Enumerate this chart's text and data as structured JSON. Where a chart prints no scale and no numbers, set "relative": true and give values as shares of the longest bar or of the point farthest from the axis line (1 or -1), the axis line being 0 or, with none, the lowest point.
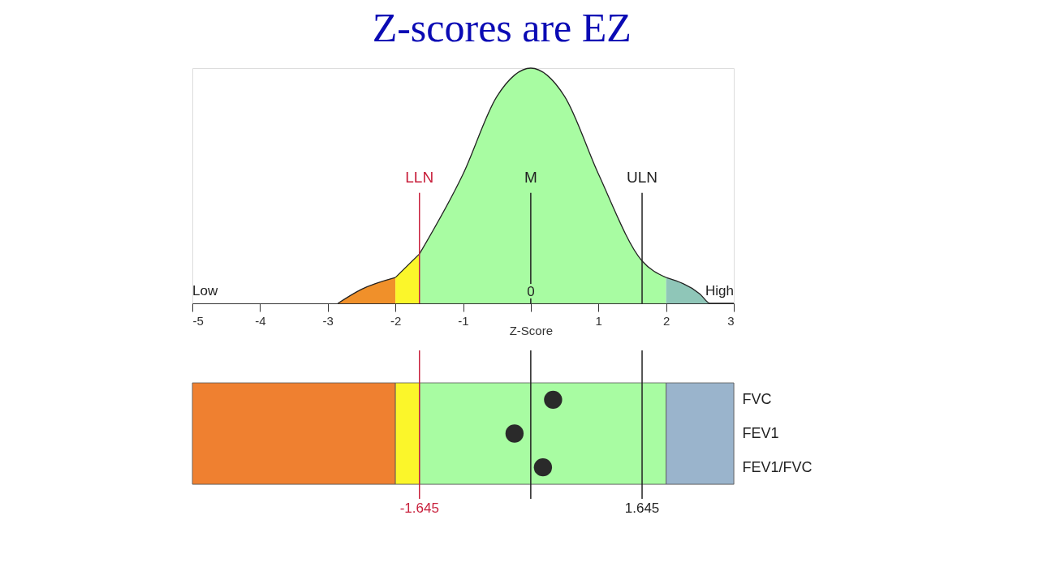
{
  "chart_data": [
    {
      "type": "area",
      "title": "Z-scores are EZ",
      "xlabel": "Z-Score",
      "relative": true,
      "xlim": [
        -5,
        3
      ],
      "xticks": [
        -5,
        -4,
        -3,
        -2,
        -1,
        {
          "value": 0,
          "label": null
        },
        1,
        2,
        3
      ],
      "tick_labels": "x",
      "series": [
        {
          "color": "#f0902a",
          "x": [
            -2.85,
            -2.5,
            -2
          ],
          "values": [
            0,
            0.06,
            0.11
          ]
        },
        {
          "color": "#fbf62a",
          "x": [
            -2,
            -1.645
          ],
          "values": [
            0.11,
            0.21
          ]
        },
        {
          "color": "#a8fca2",
          "x": [
            -1.645,
            -1,
            -0.5,
            0,
            0.5,
            1,
            1.645,
            2
          ],
          "values": [
            0.21,
            0.55,
            0.88,
            1,
            0.88,
            0.55,
            0.18,
            0.11
          ]
        },
        {
          "color": "#8fc6b8",
          "x": [
            2,
            2.5,
            2.65,
            3
          ],
          "values": [
            0.11,
            0.04,
            0,
            0
          ]
        }
      ],
      "ref_lines": [
        {
          "axis": "x",
          "value": -1.645,
          "label": "LLN",
          "color": "#c8203c"
        },
        {
          "axis": "x",
          "value": 0,
          "label": "M",
          "color": "#222222"
        },
        {
          "axis": "x",
          "value": 1.645,
          "label": "ULN",
          "color": "#222222"
        }
      ],
      "annotations": [
        "Low",
        "High",
        {
          "text": "0",
          "x": 0,
          "y": 0.05
        }
      ]
    },
    {
      "type": "scatter",
      "orientation": "horizontal",
      "categories": [
        "FVC",
        "FEV1",
        "FEV1/FVC"
      ],
      "values": [
        0.33,
        -0.24,
        0.18
      ],
      "color": "#2a2a2a",
      "marker": "circle",
      "xlim": [
        -5,
        3
      ],
      "tick_labels": "y",
      "bands": [
        {
          "axis": "x",
          "from": -5,
          "to": -2,
          "color": "#ef8030"
        },
        {
          "axis": "x",
          "from": -2,
          "to": -1.645,
          "color": "#fbf62a"
        },
        {
          "axis": "x",
          "from": -1.645,
          "to": 2,
          "color": "#a8fca2"
        },
        {
          "axis": "x",
          "from": 2,
          "to": 3,
          "color": "#9ab4cc"
        }
      ],
      "ref_lines": [
        {
          "axis": "x",
          "value": -1.645,
          "label": "-1.645",
          "color": "#c8203c"
        },
        {
          "axis": "x",
          "value": 0,
          "color": "#222222"
        },
        {
          "axis": "x",
          "value": 1.645,
          "label": "1.645",
          "color": "#222222"
        }
      ]
    }
  ]
}
